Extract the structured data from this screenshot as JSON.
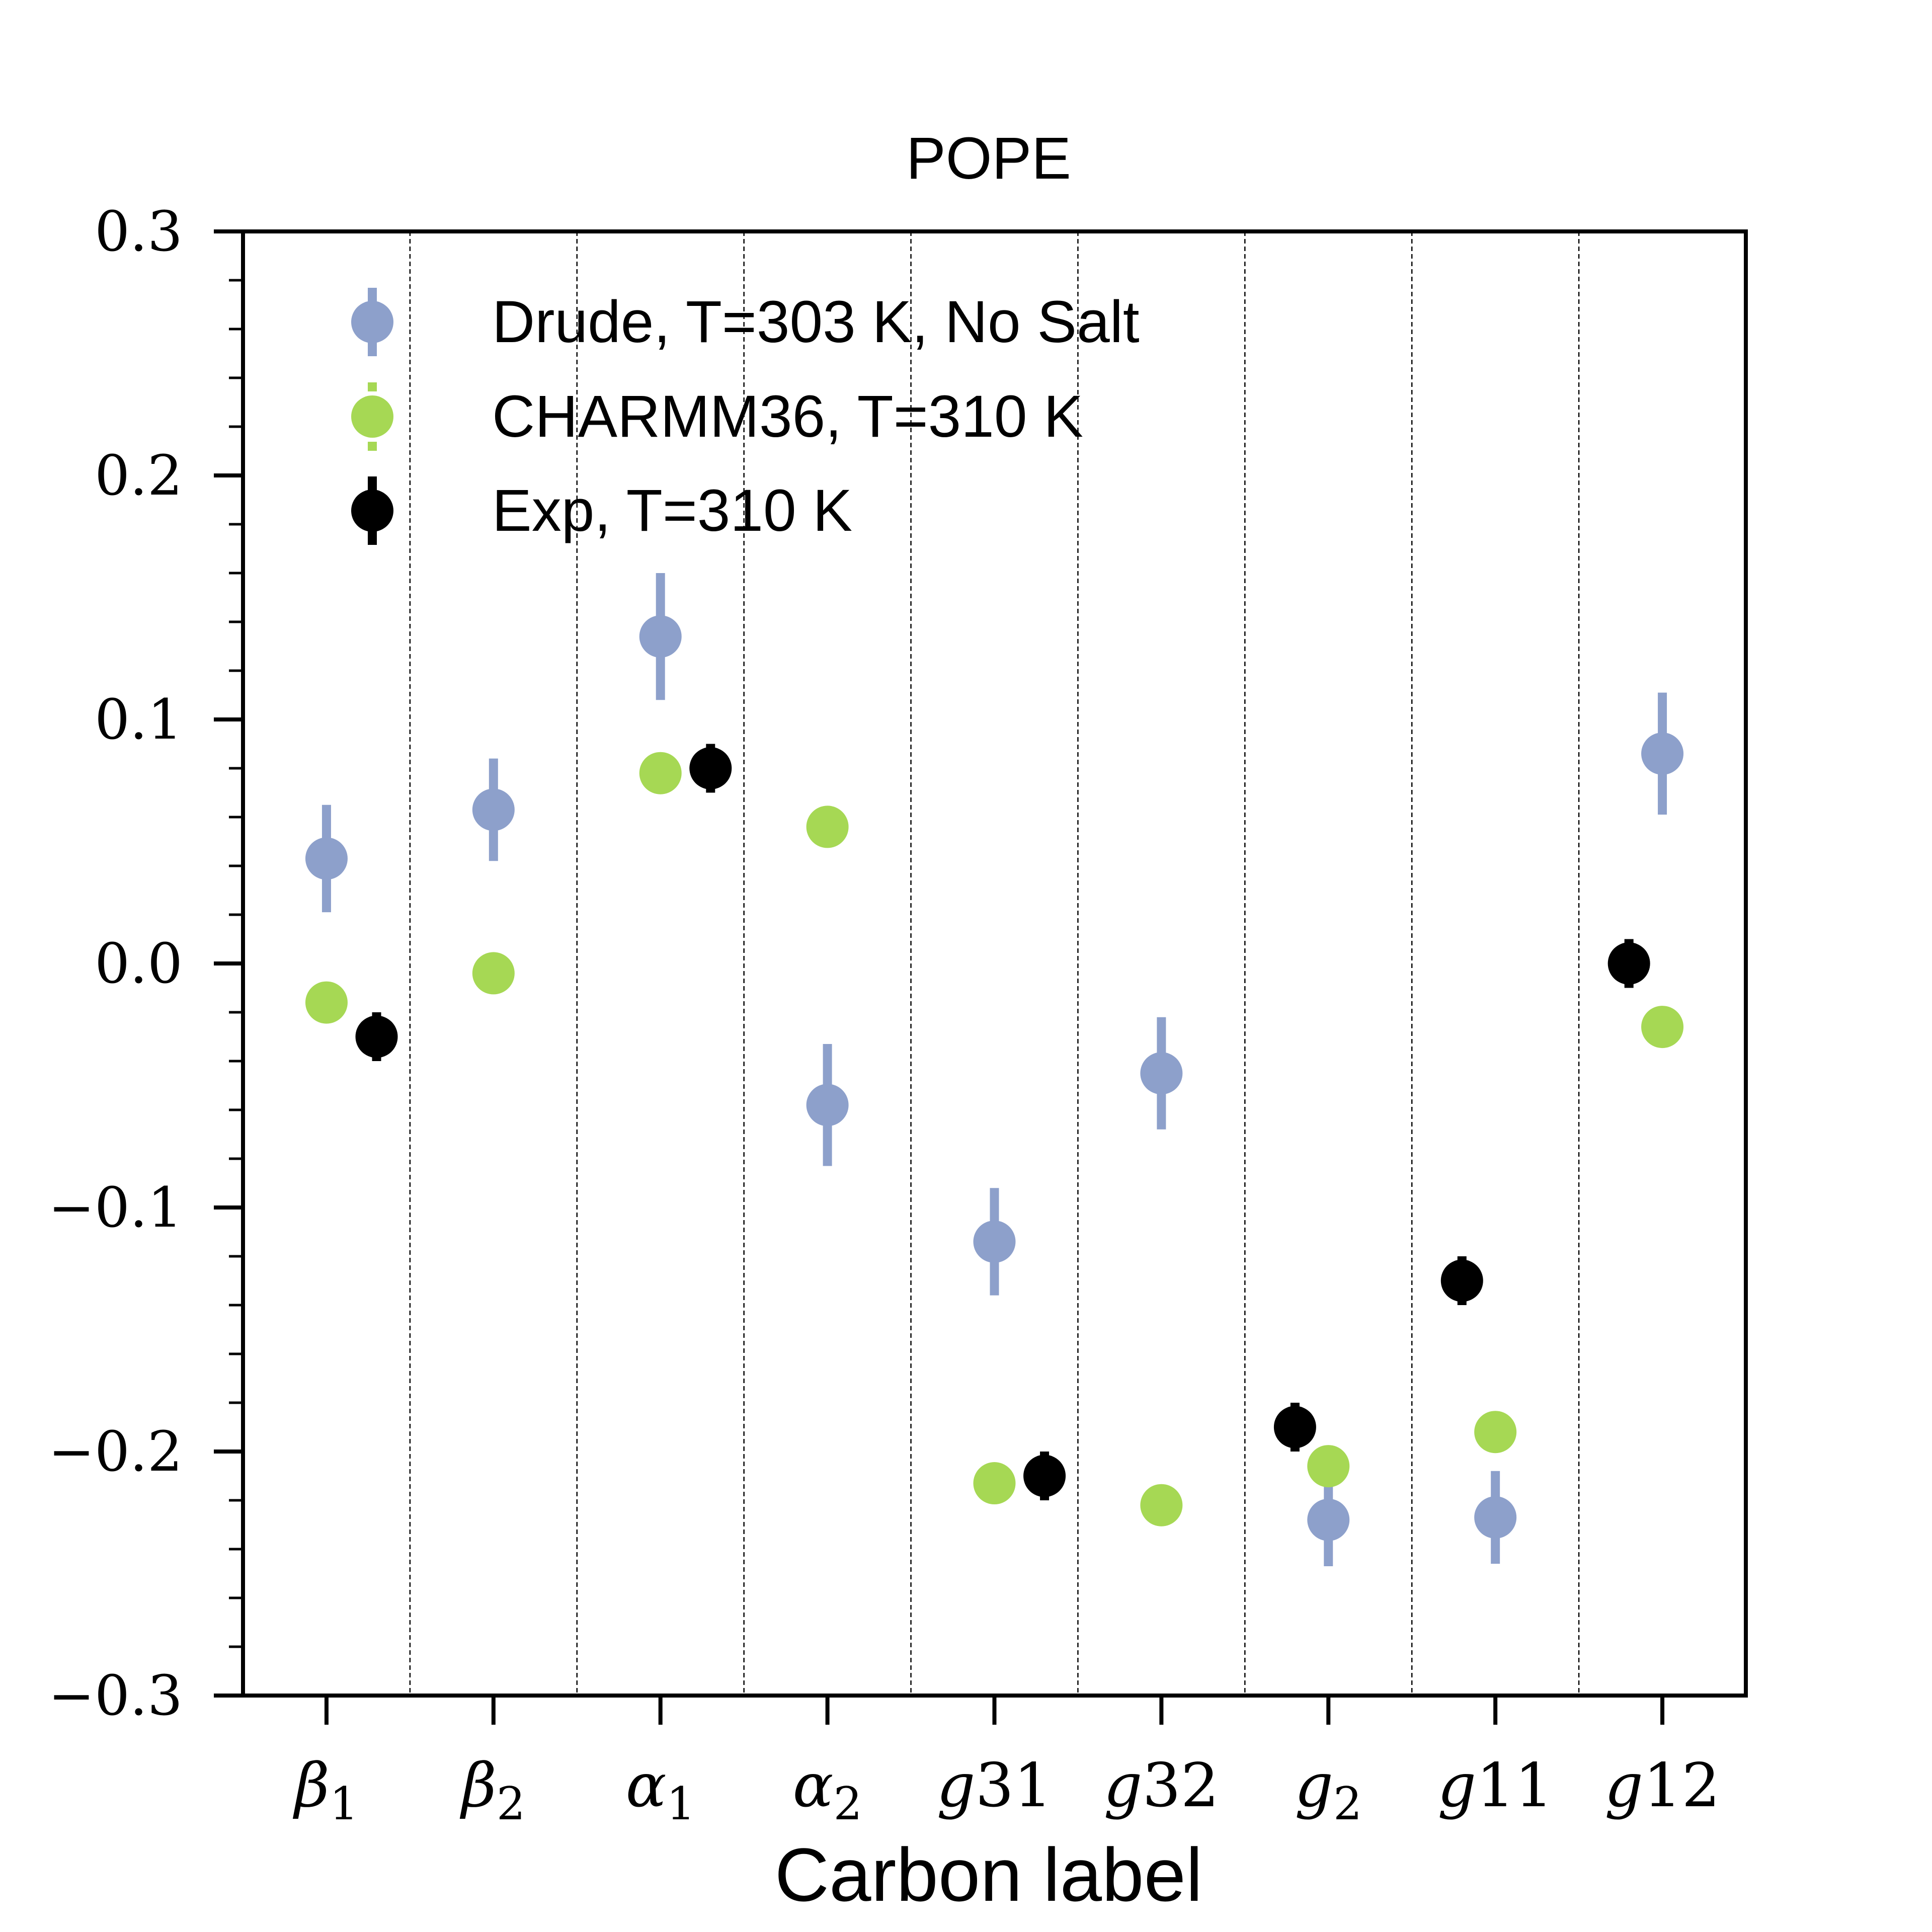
{
  "chart_data": {
    "type": "scatter",
    "title": "POPE",
    "xlabel": "Carbon label",
    "ylabel": "",
    "categories": [
      "β1",
      "β2",
      "α1",
      "α2",
      "g31",
      "g32",
      "g2",
      "g11",
      "g12"
    ],
    "category_labels": [
      {
        "main": "β",
        "sub": "1"
      },
      {
        "main": "β",
        "sub": "2"
      },
      {
        "main": "α",
        "sub": "1"
      },
      {
        "main": "α",
        "sub": "2"
      },
      {
        "main": "g",
        "sub": "31"
      },
      {
        "main": "g",
        "sub": "32"
      },
      {
        "main": "g",
        "sub": "2"
      },
      {
        "main": "g",
        "sub": "11"
      },
      {
        "main": "g",
        "sub": "12"
      }
    ],
    "ylim": [
      -0.3,
      0.3
    ],
    "yticks": [
      -0.3,
      -0.2,
      -0.1,
      0.0,
      0.1,
      0.2,
      0.3
    ],
    "ytick_labels": [
      "−0.3",
      "−0.2",
      "−0.1",
      "0.0",
      "0.1",
      "0.2",
      "0.3"
    ],
    "grid": "vertical dashed separators between categories",
    "legend_position": "top-left",
    "series": [
      {
        "name": "Drude, T=303 K, No Salt",
        "color": "#8da0cb",
        "values": [
          0.043,
          0.063,
          0.134,
          -0.058,
          -0.114,
          -0.045,
          -0.228,
          -0.227,
          0.086
        ],
        "errors": [
          0.022,
          0.021,
          0.026,
          0.025,
          0.022,
          0.023,
          0.019,
          0.019,
          0.025
        ]
      },
      {
        "name": "CHARMM36, T=310 K",
        "color": "#a6d854",
        "values": [
          -0.016,
          -0.004,
          0.078,
          0.056,
          -0.213,
          -0.222,
          -0.206,
          -0.192,
          -0.026
        ],
        "errors": [
          0,
          0,
          0,
          0,
          0,
          0,
          0,
          0,
          0
        ]
      },
      {
        "name": "Exp, T=310 K",
        "color": "#000000",
        "values": [
          -0.03,
          null,
          0.08,
          null,
          -0.21,
          null,
          -0.19,
          -0.13,
          0.0
        ],
        "errors": [
          0.01,
          null,
          0.01,
          null,
          0.01,
          null,
          0.01,
          0.01,
          0.01
        ]
      }
    ]
  }
}
